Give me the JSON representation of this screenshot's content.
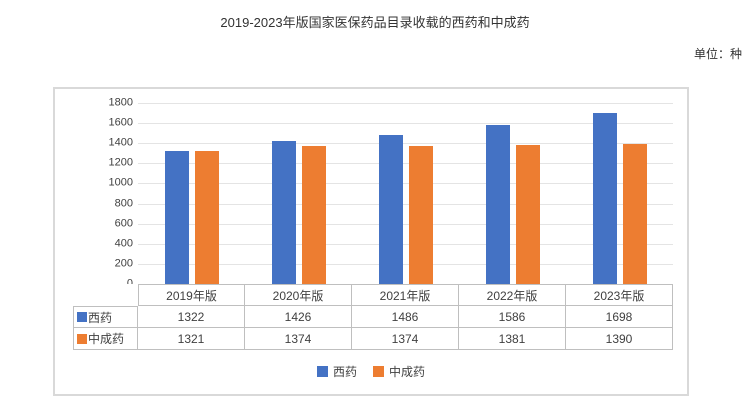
{
  "page": {
    "title": "2019-2023年版国家医保药品目录收载的西药和中成药",
    "unit_label": "单位：种"
  },
  "chart_data": {
    "type": "bar",
    "title": "2019-2023年版国家医保药品目录收载的西药和中成药",
    "unit": "单位：种",
    "categories": [
      "2019年版",
      "2020年版",
      "2021年版",
      "2022年版",
      "2023年版"
    ],
    "series": [
      {
        "name": "西药",
        "color": "#4472C4",
        "values": [
          1322,
          1426,
          1486,
          1586,
          1698
        ]
      },
      {
        "name": "中成药",
        "color": "#ED7D31",
        "values": [
          1321,
          1374,
          1374,
          1381,
          1390
        ]
      }
    ],
    "ylim": [
      0,
      1800
    ],
    "ytick_step": 200,
    "grid": true,
    "legend_position": "bottom",
    "data_table": true
  },
  "colors": {
    "grid": "#e4e4e4",
    "table_border": "#bfbfbf",
    "frame_border": "#d9d9d9",
    "text": "#404040"
  }
}
